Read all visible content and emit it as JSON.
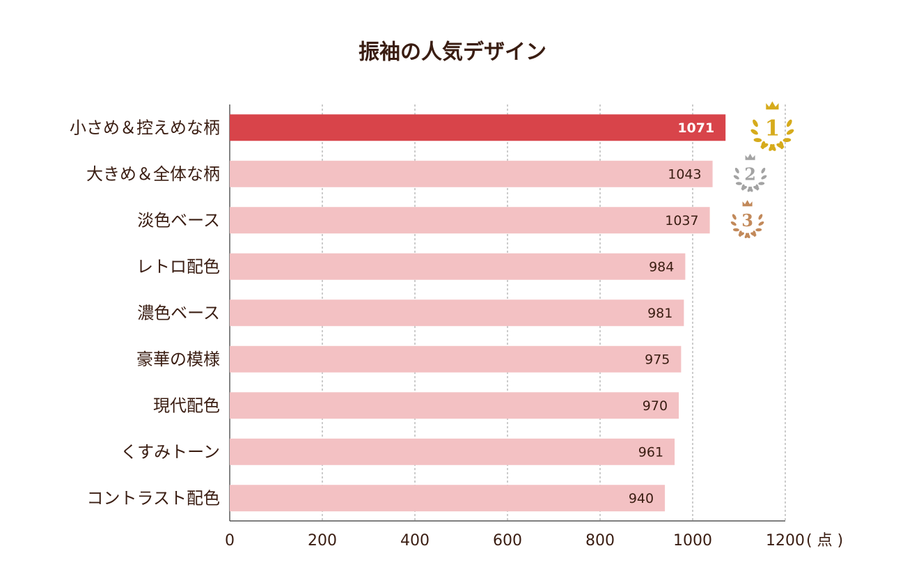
{
  "chart_data": {
    "type": "barh",
    "title": "振袖の人気デザイン",
    "categories": [
      "小さめ＆控えめな柄",
      "大きめ＆全体な柄",
      "淡色ベース",
      "レトロ配色",
      "濃色ベース",
      "豪華の模様",
      "現代配色",
      "くすみトーン",
      "コントラスト配色"
    ],
    "values": [
      1071,
      1043,
      1037,
      984,
      981,
      975,
      970,
      961,
      940
    ],
    "colors": [
      "#d8444a",
      "#f3c1c3",
      "#f3c1c3",
      "#f3c1c3",
      "#f3c1c3",
      "#f3c1c3",
      "#f3c1c3",
      "#f3c1c3",
      "#f3c1c3"
    ],
    "xlim": [
      0,
      1200
    ],
    "xticks": [
      0,
      200,
      400,
      600,
      800,
      1000,
      1200
    ],
    "x_unit": "( 点 )",
    "grid": true,
    "ranks": [
      "1",
      "2",
      "3"
    ],
    "rank_colors": [
      "#d6ab1c",
      "#a3a3a3",
      "#c2895a"
    ]
  }
}
